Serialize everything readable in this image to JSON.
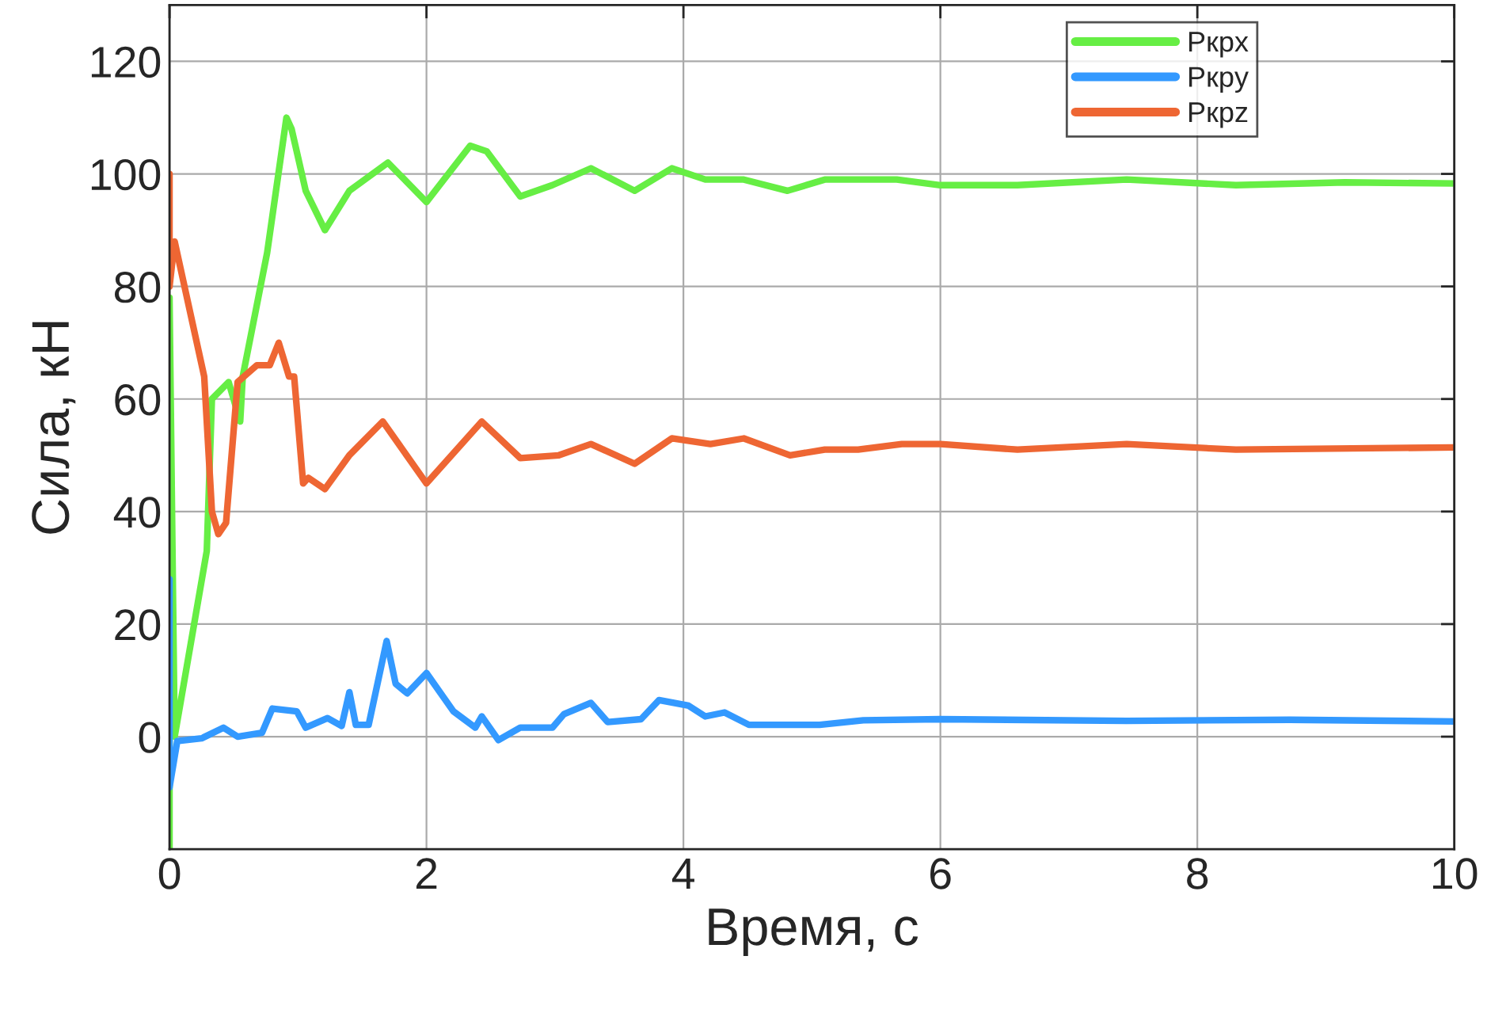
{
  "chart_data": {
    "type": "line",
    "xlabel": "Время, с",
    "ylabel": "Сила, кН",
    "xlim": [
      0,
      10
    ],
    "xticks": [
      0,
      2,
      4,
      6,
      8,
      10
    ],
    "ylim": [
      -20,
      130
    ],
    "yticks": [
      0,
      20,
      40,
      60,
      80,
      100,
      120
    ],
    "grid": true,
    "legend": "top right",
    "marker": "none",
    "line_style": "solid",
    "series": [
      {
        "name": "Pкрx",
        "color": "#66ee44",
        "x": [
          0,
          0,
          0.04,
          0.29,
          0.33,
          0.46,
          0.55,
          0.57,
          0.76,
          0.91,
          0.95,
          1.06,
          1.21,
          1.4,
          1.7,
          2.0,
          2.34,
          2.47,
          2.73,
          2.98,
          3.28,
          3.62,
          3.91,
          4.17,
          4.47,
          4.81,
          5.1,
          5.66,
          6.0,
          6.6,
          7.45,
          8.3,
          9.15,
          10
        ],
        "values": [
          -20,
          78,
          0,
          33,
          60,
          63,
          56,
          64,
          86,
          110,
          108,
          97,
          90,
          97,
          102,
          95,
          105,
          104,
          96,
          98,
          101,
          97,
          101,
          99,
          99,
          97,
          99,
          99,
          98,
          98,
          99,
          98,
          98.5,
          98.3
        ]
      },
      {
        "name": "Pкрy",
        "color": "#3399ff",
        "x": [
          0,
          0,
          0.06,
          0.25,
          0.42,
          0.53,
          0.72,
          0.8,
          0.99,
          1.06,
          1.23,
          1.34,
          1.4,
          1.45,
          1.55,
          1.69,
          1.76,
          1.85,
          2.0,
          2.21,
          2.38,
          2.43,
          2.56,
          2.73,
          2.98,
          3.07,
          3.28,
          3.41,
          3.67,
          3.81,
          4.04,
          4.17,
          4.32,
          4.51,
          5.06,
          5.4,
          6.0,
          7.45,
          8.72,
          10
        ],
        "values": [
          28,
          -9,
          -0.8,
          -0.3,
          1.6,
          0,
          0.7,
          5,
          4.5,
          1.6,
          3.3,
          1.9,
          7.9,
          2.1,
          2.1,
          17,
          9.4,
          7.7,
          11.3,
          4.5,
          1.6,
          3.6,
          -0.6,
          1.6,
          1.6,
          4,
          6,
          2.6,
          3.1,
          6.5,
          5.5,
          3.6,
          4.3,
          2.1,
          2.1,
          2.9,
          3.1,
          2.8,
          3,
          2.7
        ]
      },
      {
        "name": "Pкрz",
        "color": "#ee6633",
        "x": [
          0,
          0,
          0.04,
          0.27,
          0.33,
          0.38,
          0.44,
          0.53,
          0.68,
          0.78,
          0.85,
          0.93,
          0.97,
          1.04,
          1.08,
          1.21,
          1.4,
          1.66,
          2.0,
          2.43,
          2.73,
          3.03,
          3.28,
          3.62,
          3.91,
          4.21,
          4.47,
          4.83,
          5.1,
          5.36,
          5.7,
          6.0,
          6.6,
          7.45,
          8.3,
          10
        ],
        "values": [
          100,
          80,
          88,
          64,
          40,
          36,
          38,
          63,
          66,
          66,
          70,
          64,
          64,
          45,
          46,
          44,
          50,
          56,
          45,
          56,
          49.5,
          50,
          52,
          48.5,
          53,
          52,
          53,
          50,
          51,
          51,
          52,
          52,
          51,
          52,
          51,
          51.4
        ]
      }
    ]
  }
}
